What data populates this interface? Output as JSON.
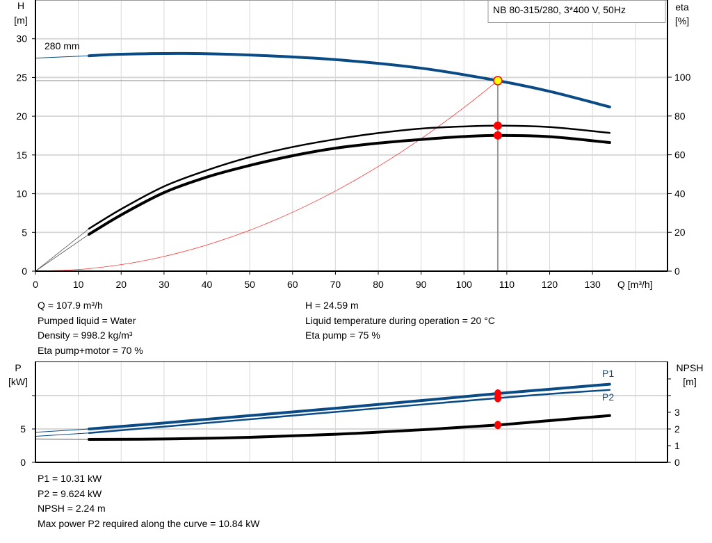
{
  "chart_data": [
    {
      "type": "line",
      "title": "NB 80-315/280, 3*400 V, 50Hz",
      "xlabel": "Q [m³/h]",
      "ylabel": "H\n[m]",
      "ylabel_lines": [
        "H",
        "[m]"
      ],
      "y2label_lines": [
        "eta",
        "[%]"
      ],
      "xlim": [
        0,
        147.5
      ],
      "ylim": [
        0,
        35
      ],
      "y2lim": [
        0,
        139.8
      ],
      "grid": true,
      "x_ticks": [
        "0",
        "10",
        "20",
        "30",
        "40",
        "50",
        "60",
        "70",
        "80",
        "90",
        "100",
        "110",
        "120",
        "130"
      ],
      "y_ticks": [
        "0",
        "5",
        "10",
        "15",
        "20",
        "25",
        "30"
      ],
      "y2_ticks": [
        "0",
        "20",
        "40",
        "60",
        "80",
        "100"
      ],
      "curve_label": "280 mm",
      "series": [
        {
          "key": "head",
          "axis": "H",
          "color": "#0a4a85",
          "x": [
            12.5,
            20,
            35,
            50,
            70,
            90,
            107.9,
            120,
            134
          ],
          "y": [
            27.8,
            28.0,
            28.1,
            27.9,
            27.3,
            26.2,
            24.59,
            23.2,
            21.2
          ],
          "extrapolated_x": [
            0,
            12.5
          ],
          "extrapolated_y": [
            27.5,
            27.8
          ]
        },
        {
          "key": "eta_pump",
          "axis": "eta",
          "color": "#000000",
          "x": [
            12.5,
            20,
            30,
            40,
            50,
            60,
            70,
            80,
            90,
            100,
            107.9,
            120,
            134
          ],
          "y": [
            21.9,
            32,
            43.7,
            52,
            58.8,
            64,
            68,
            71.2,
            73.5,
            74.6,
            75,
            74.3,
            71.3
          ],
          "extrapolated_x": [
            0,
            12.5
          ],
          "extrapolated_y": [
            0,
            21.9
          ]
        },
        {
          "key": "eta_pump_motor",
          "axis": "eta",
          "color": "#000000",
          "x": [
            12.5,
            20,
            30,
            40,
            50,
            60,
            70,
            80,
            90,
            100,
            107.9,
            120,
            134
          ],
          "y": [
            19,
            29,
            40.5,
            48.5,
            54.5,
            59.5,
            63.4,
            66,
            67.9,
            69.4,
            70,
            69.3,
            66.3
          ],
          "extrapolated_x": [
            0,
            12.5
          ],
          "extrapolated_y": [
            0,
            19
          ]
        },
        {
          "key": "system",
          "axis": "H",
          "color": "#ff3030",
          "x": [
            0,
            10,
            20,
            30,
            40,
            50,
            60,
            70,
            80,
            90,
            100,
            107.9
          ],
          "y": [
            0,
            0.21,
            0.84,
            1.9,
            3.38,
            5.28,
            7.6,
            10.35,
            13.51,
            17.1,
            21.12,
            24.59
          ]
        }
      ],
      "duty_point": {
        "Q": 107.9,
        "H": 24.59,
        "eta_pump": 75,
        "eta_pump_motor": 70,
        "marker_color": "#ffff00"
      }
    },
    {
      "type": "line",
      "ylabel_lines": [
        "P",
        "[kW]"
      ],
      "y2label_lines": [
        "NPSH",
        "[m]"
      ],
      "xlim": [
        0,
        147.5
      ],
      "ylim": [
        0,
        15.1
      ],
      "y2lim": [
        0,
        6.04
      ],
      "grid": true,
      "y_ticks": [
        "0",
        "5"
      ],
      "y2_ticks": [
        "0",
        "1",
        "2",
        "3"
      ],
      "series": [
        {
          "name": "P1",
          "axis": "P",
          "color": "#0a4a85",
          "x": [
            12.5,
            30,
            50,
            70,
            90,
            107.9,
            120,
            134
          ],
          "y": [
            5.0,
            5.9,
            7.0,
            8.1,
            9.25,
            10.31,
            10.95,
            11.7
          ],
          "extrapolated_x": [
            0,
            12.5
          ],
          "extrapolated_y": [
            4.5,
            5.0
          ]
        },
        {
          "name": "P2",
          "axis": "P",
          "color": "#0a4a85",
          "x": [
            12.5,
            30,
            50,
            70,
            90,
            107.9,
            120,
            134
          ],
          "y": [
            4.4,
            5.35,
            6.45,
            7.55,
            8.65,
            9.624,
            10.25,
            10.85
          ],
          "extrapolated_x": [
            0,
            12.5
          ],
          "extrapolated_y": [
            3.9,
            4.4
          ]
        },
        {
          "key": "npsh",
          "axis": "NPSH",
          "color": "#000000",
          "x": [
            12.5,
            30,
            50,
            70,
            90,
            107.9,
            120,
            134
          ],
          "y": [
            1.375,
            1.4,
            1.5,
            1.68,
            1.95,
            2.24,
            2.5,
            2.8
          ],
          "extrapolated_x": [
            0,
            12.5
          ],
          "extrapolated_y": [
            1.4,
            1.375
          ]
        }
      ],
      "duty_point": {
        "Q": 107.9,
        "P1": 10.31,
        "P2": 9.624,
        "NPSH": 2.24
      }
    }
  ],
  "info_top_left": [
    "Q = 107.9 m³/h",
    "Pumped liquid = Water",
    "Density = 998.2 kg/m³",
    "Eta pump+motor = 70 %"
  ],
  "info_top_right": [
    "H = 24.59 m",
    "Liquid temperature during operation = 20 °C",
    "Eta pump = 75 %"
  ],
  "info_bottom": [
    "P1 = 10.31 kW",
    "P2 = 9.624 kW",
    "NPSH = 2.24 m",
    "Max power P2 required along the curve = 10.84 kW"
  ]
}
